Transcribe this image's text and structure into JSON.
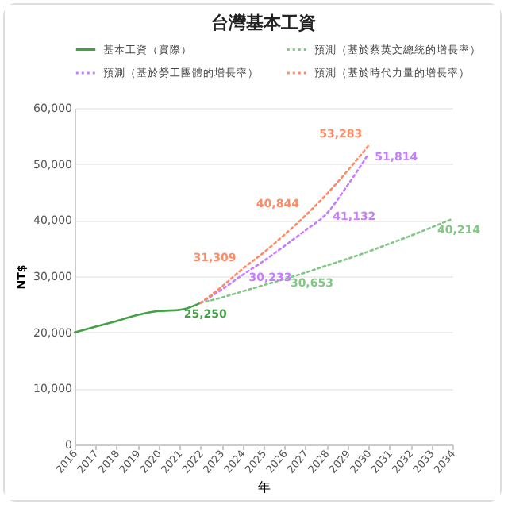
{
  "chart_data": {
    "type": "line",
    "title": "台灣基本工資",
    "xlabel": "年",
    "ylabel": "NT$",
    "xlim": [
      2016,
      2034
    ],
    "xticks": [
      2016,
      2017,
      2018,
      2019,
      2020,
      2021,
      2022,
      2023,
      2024,
      2025,
      2026,
      2027,
      2028,
      2029,
      2030,
      2031,
      2032,
      2033,
      2034
    ],
    "ylim": [
      0,
      60000
    ],
    "yticks": [
      0,
      {
        "value": 10000,
        "label": "10,000"
      },
      {
        "value": 20000,
        "label": "20,000"
      },
      {
        "value": 30000,
        "label": "30,000"
      },
      {
        "value": 40000,
        "label": "40,000"
      },
      {
        "value": 50000,
        "label": "50,000"
      },
      {
        "value": 60000,
        "label": "60,000"
      }
    ],
    "grid": "y",
    "legend": "top",
    "marker": "none",
    "series": [
      {
        "name": "基本工資（實際）",
        "color": "#43a047",
        "line_style": "solid",
        "x": [
          2016,
          2017,
          2018,
          2019,
          2020,
          2021,
          2022
        ],
        "values": [
          20000,
          21000,
          22000,
          23100,
          23800,
          24000,
          25250
        ],
        "value_labels": [
          null,
          null,
          null,
          null,
          null,
          null,
          "25,250"
        ]
      },
      {
        "name": "預測（基於蔡英文總統的增長率）",
        "color": "#81c784",
        "line_style": "dotted",
        "x": [
          2022,
          2023,
          2024,
          2025,
          2026,
          2027,
          2028,
          2029,
          2030,
          2031,
          2032,
          2033,
          2034
        ],
        "values": [
          25250,
          26200,
          27300,
          28400,
          29500,
          30653,
          31900,
          33100,
          34400,
          35800,
          37200,
          38700,
          40214
        ],
        "value_labels": [
          null,
          null,
          null,
          null,
          null,
          "30,653",
          null,
          null,
          null,
          null,
          null,
          null,
          "40,214"
        ]
      },
      {
        "name": "預測（基於勞工團體的增長率）",
        "color": "#c77dff",
        "line_style": "dotted",
        "x": [
          2022,
          2023,
          2024,
          2025,
          2026,
          2027,
          2028,
          2029,
          2030
        ],
        "values": [
          25250,
          27600,
          30233,
          32700,
          35400,
          38200,
          41132,
          46200,
          51814
        ],
        "value_labels": [
          null,
          null,
          "30,233",
          null,
          null,
          null,
          "41,132",
          null,
          "51,814"
        ]
      },
      {
        "name": "預測（基於時代力量的增長率）",
        "color": "#ff8a65",
        "line_style": "dotted",
        "x": [
          2022,
          2023,
          2024,
          2025,
          2026,
          2027,
          2028,
          2029,
          2030
        ],
        "values": [
          25250,
          28100,
          31309,
          34200,
          37400,
          40844,
          44600,
          48800,
          53283
        ],
        "value_labels": [
          null,
          null,
          "31,309",
          null,
          null,
          "40,844",
          null,
          null,
          "53,283"
        ]
      }
    ]
  }
}
